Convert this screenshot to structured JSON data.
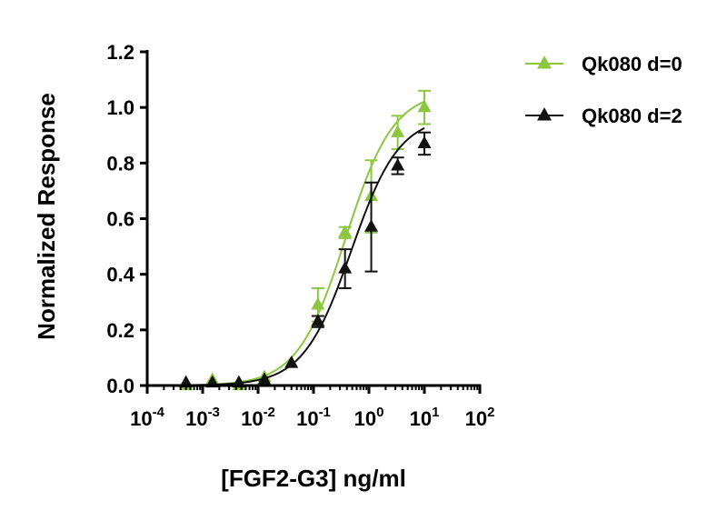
{
  "chart_data": {
    "type": "scatter",
    "xlabel": "[FGF2-G3] ng/ml",
    "ylabel": "Normalized Response",
    "xscale": "log",
    "xlim": [
      0.0001,
      100
    ],
    "ylim": [
      0,
      1.2
    ],
    "x_ticks": [
      {
        "value": 0.0001,
        "base": "10",
        "exp": "-4"
      },
      {
        "value": 0.001,
        "base": "10",
        "exp": "-3"
      },
      {
        "value": 0.01,
        "base": "10",
        "exp": "-2"
      },
      {
        "value": 0.1,
        "base": "10",
        "exp": "-1"
      },
      {
        "value": 1,
        "base": "10",
        "exp": "0"
      },
      {
        "value": 10,
        "base": "10",
        "exp": "1"
      },
      {
        "value": 100,
        "base": "10",
        "exp": "2"
      }
    ],
    "y_ticks": [
      {
        "value": 0.0,
        "label": "0.0"
      },
      {
        "value": 0.2,
        "label": "0.2"
      },
      {
        "value": 0.4,
        "label": "0.4"
      },
      {
        "value": 0.6,
        "label": "0.6"
      },
      {
        "value": 0.8,
        "label": "0.8"
      },
      {
        "value": 1.0,
        "label": "1.0"
      },
      {
        "value": 1.2,
        "label": "1.2"
      }
    ],
    "grid": false,
    "legend_position": "top-right",
    "series": [
      {
        "name": "Qk080 d=0",
        "color": "#8dc63f",
        "marker": "triangle",
        "fit": {
          "bottom": 0.0,
          "top": 1.06,
          "ec50": 0.38,
          "hill": 1.0
        },
        "x": [
          0.0005,
          0.0015,
          0.0045,
          0.013,
          0.04,
          0.12,
          0.37,
          1.1,
          3.3,
          10
        ],
        "y": [
          0.0,
          0.02,
          0.0,
          0.03,
          0.08,
          0.29,
          0.55,
          0.68,
          0.91,
          1.0
        ],
        "error": [
          0.01,
          0.01,
          0.01,
          0.01,
          0.01,
          0.06,
          0.02,
          0.13,
          0.06,
          0.06
        ]
      },
      {
        "name": "Qk080 d=2",
        "color": "#111111",
        "marker": "triangle",
        "fit": {
          "bottom": 0.0,
          "top": 0.97,
          "ec50": 0.48,
          "hill": 1.0
        },
        "x": [
          0.0005,
          0.0015,
          0.0045,
          0.013,
          0.04,
          0.12,
          0.37,
          1.1,
          3.3,
          10
        ],
        "y": [
          0.01,
          0.01,
          0.01,
          0.02,
          0.08,
          0.23,
          0.42,
          0.57,
          0.79,
          0.87
        ],
        "error": [
          0.01,
          0.01,
          0.01,
          0.01,
          0.01,
          0.02,
          0.07,
          0.16,
          0.03,
          0.04
        ]
      }
    ]
  }
}
